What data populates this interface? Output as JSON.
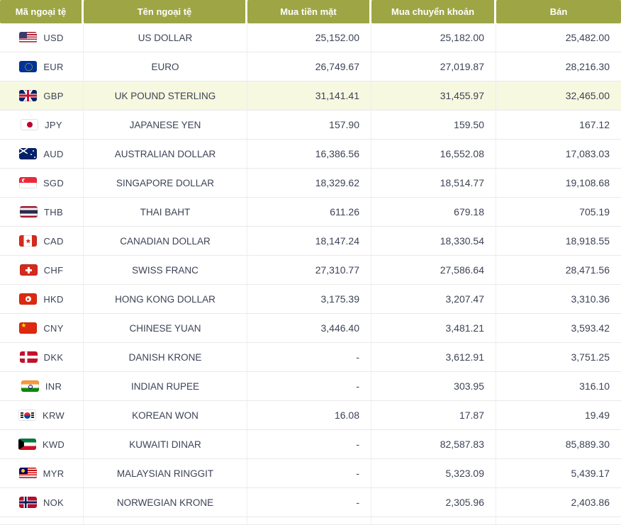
{
  "colors": {
    "header_bg": "#9ea544",
    "header_text": "#ffffff",
    "highlight_bg": "#f6f8e0",
    "row_border": "#e9e9e9",
    "col_border": "#efefef",
    "text_color": "#3d4356"
  },
  "table": {
    "columns": [
      {
        "label": "Mã ngoại tệ"
      },
      {
        "label": "Tên ngoại tệ"
      },
      {
        "label": "Mua tiền mặt"
      },
      {
        "label": "Mua chuyển khoản"
      },
      {
        "label": "Bán"
      }
    ],
    "rows": [
      {
        "code": "USD",
        "flag": "us",
        "name": "US DOLLAR",
        "cash": "25,152.00",
        "transfer": "25,182.00",
        "sell": "25,482.00",
        "highlight": false
      },
      {
        "code": "EUR",
        "flag": "eu",
        "name": "EURO",
        "cash": "26,749.67",
        "transfer": "27,019.87",
        "sell": "28,216.30",
        "highlight": false
      },
      {
        "code": "GBP",
        "flag": "gb",
        "name": "UK POUND STERLING",
        "cash": "31,141.41",
        "transfer": "31,455.97",
        "sell": "32,465.00",
        "highlight": true
      },
      {
        "code": "JPY",
        "flag": "jp",
        "name": "JAPANESE YEN",
        "cash": "157.90",
        "transfer": "159.50",
        "sell": "167.12",
        "highlight": false
      },
      {
        "code": "AUD",
        "flag": "au",
        "name": "AUSTRALIAN DOLLAR",
        "cash": "16,386.56",
        "transfer": "16,552.08",
        "sell": "17,083.03",
        "highlight": false
      },
      {
        "code": "SGD",
        "flag": "sg",
        "name": "SINGAPORE DOLLAR",
        "cash": "18,329.62",
        "transfer": "18,514.77",
        "sell": "19,108.68",
        "highlight": false
      },
      {
        "code": "THB",
        "flag": "th",
        "name": "THAI BAHT",
        "cash": "611.26",
        "transfer": "679.18",
        "sell": "705.19",
        "highlight": false
      },
      {
        "code": "CAD",
        "flag": "ca",
        "name": "CANADIAN DOLLAR",
        "cash": "18,147.24",
        "transfer": "18,330.54",
        "sell": "18,918.55",
        "highlight": false
      },
      {
        "code": "CHF",
        "flag": "ch",
        "name": "SWISS FRANC",
        "cash": "27,310.77",
        "transfer": "27,586.64",
        "sell": "28,471.56",
        "highlight": false
      },
      {
        "code": "HKD",
        "flag": "hk",
        "name": "HONG KONG DOLLAR",
        "cash": "3,175.39",
        "transfer": "3,207.47",
        "sell": "3,310.36",
        "highlight": false
      },
      {
        "code": "CNY",
        "flag": "cn",
        "name": "CHINESE YUAN",
        "cash": "3,446.40",
        "transfer": "3,481.21",
        "sell": "3,593.42",
        "highlight": false
      },
      {
        "code": "DKK",
        "flag": "dk",
        "name": "DANISH KRONE",
        "cash": "-",
        "transfer": "3,612.91",
        "sell": "3,751.25",
        "highlight": false
      },
      {
        "code": "INR",
        "flag": "in",
        "name": "INDIAN RUPEE",
        "cash": "-",
        "transfer": "303.95",
        "sell": "316.10",
        "highlight": false
      },
      {
        "code": "KRW",
        "flag": "kr",
        "name": "KOREAN WON",
        "cash": "16.08",
        "transfer": "17.87",
        "sell": "19.49",
        "highlight": false
      },
      {
        "code": "KWD",
        "flag": "kw",
        "name": "KUWAITI DINAR",
        "cash": "-",
        "transfer": "82,587.83",
        "sell": "85,889.30",
        "highlight": false
      },
      {
        "code": "MYR",
        "flag": "my",
        "name": "MALAYSIAN RINGGIT",
        "cash": "-",
        "transfer": "5,323.09",
        "sell": "5,439.17",
        "highlight": false
      },
      {
        "code": "NOK",
        "flag": "no",
        "name": "NORWEGIAN KRONE",
        "cash": "-",
        "transfer": "2,305.96",
        "sell": "2,403.86",
        "highlight": false
      }
    ]
  }
}
